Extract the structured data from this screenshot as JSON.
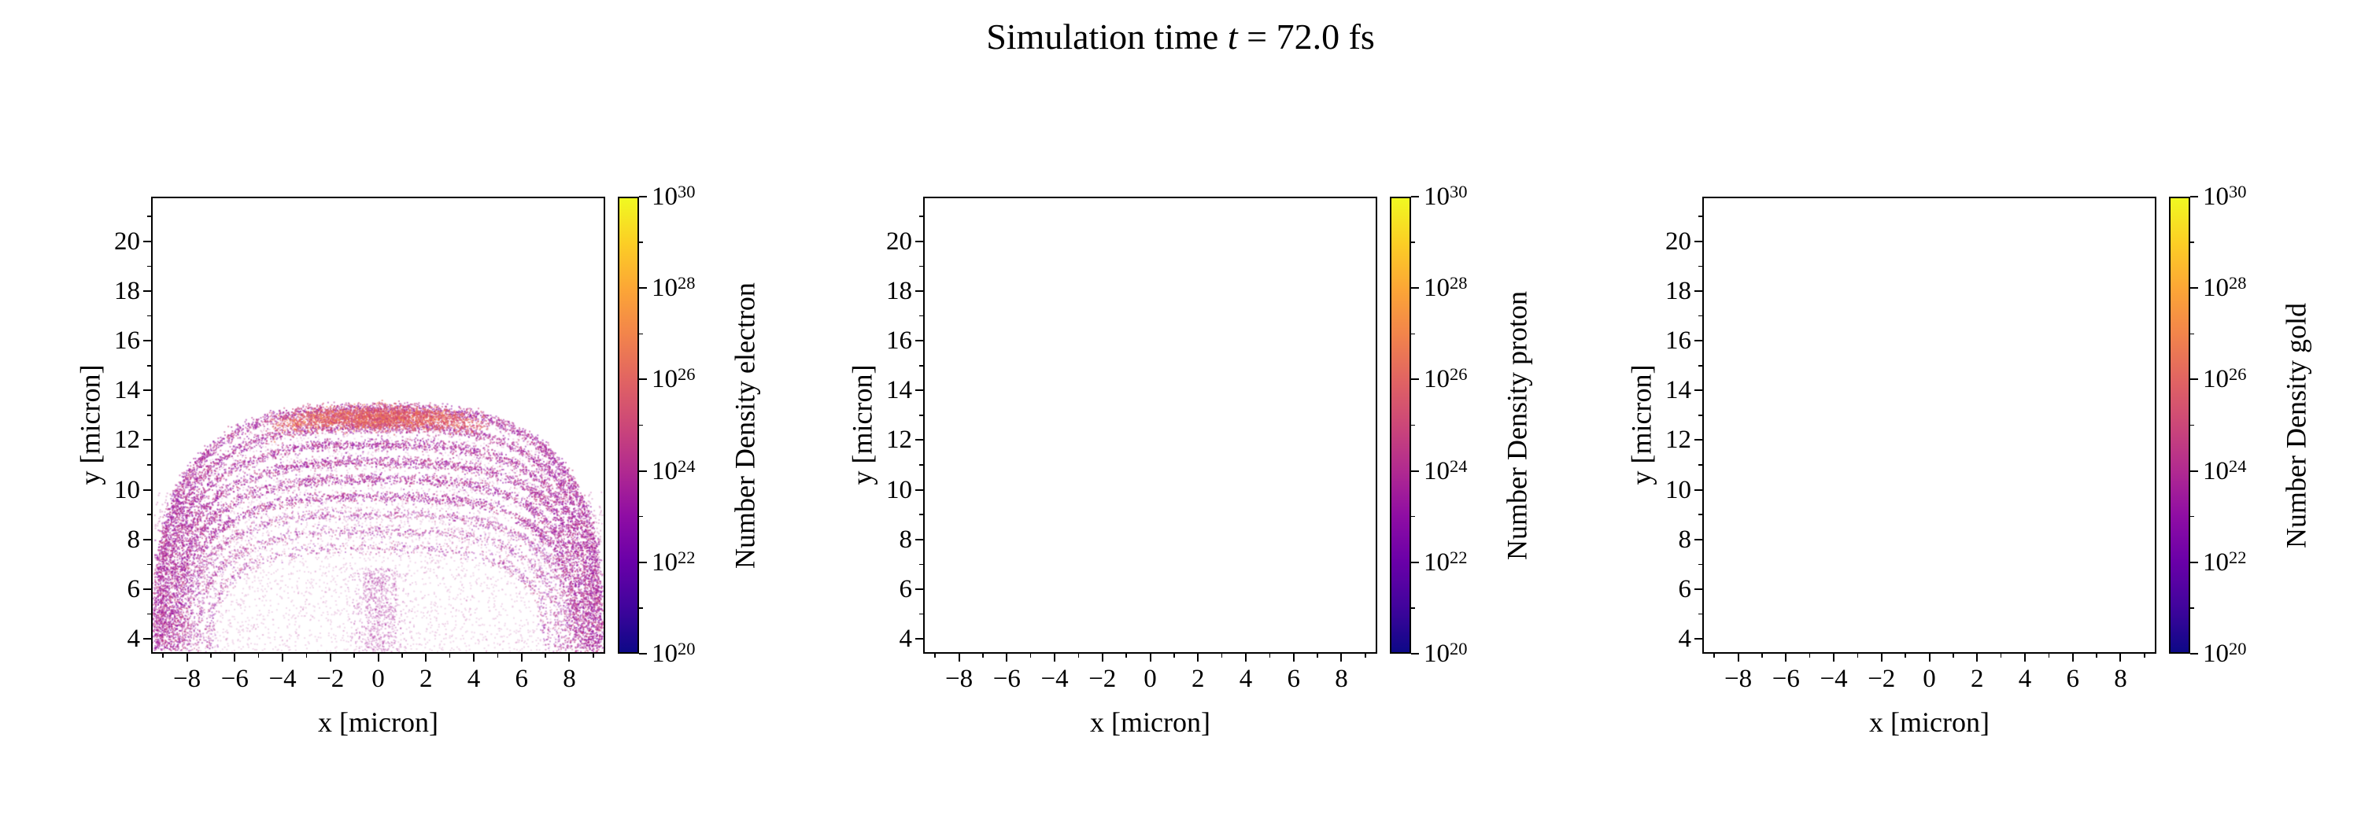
{
  "figure": {
    "title": {
      "full": "Simulation time t = 72.0 fs",
      "prefix": "Simulation time ",
      "variable": "t",
      "suffix": " = 72.0 fs"
    },
    "background_color": "#ffffff",
    "text_color": "#000000"
  },
  "colormap": {
    "name": "plasma",
    "stops": [
      "#0d0887",
      "#41049d",
      "#6a00a8",
      "#8f0da4",
      "#b12a90",
      "#cc4778",
      "#e16462",
      "#f2844b",
      "#fca636",
      "#fcce25",
      "#f0f921"
    ]
  },
  "chart_data": [
    {
      "type": "scatter",
      "species": "electron",
      "title": "",
      "xlabel": "x [micron]",
      "ylabel": "y [micron]",
      "xlim": [
        -9.5,
        9.5
      ],
      "ylim": [
        3.4,
        21.8
      ],
      "xticks": [
        -8,
        -6,
        -4,
        -2,
        0,
        2,
        4,
        6,
        8
      ],
      "yticks": [
        4,
        6,
        8,
        10,
        12,
        14,
        16,
        18,
        20
      ],
      "minor_tick_step": 1,
      "grid": false,
      "colorbar": {
        "label": "Number Density electron",
        "scale": "log",
        "tick_exponents": [
          20,
          22,
          24,
          26,
          28,
          30
        ],
        "minor_tick_exponents": [
          21,
          23,
          25,
          27,
          29
        ],
        "range": [
          "1e20",
          "1e30"
        ],
        "colormap": "plasma"
      },
      "content": {
        "empty": false,
        "description": "Dome-shaped expanding plasma shell: concentric magenta arcs between y ~ 8 and y ~ 13.3 micron spanning x ~ -9.4 to 9.4, a denser warm-colored crest band near y ~ 13, diffuse particle fill below the arcs down to y ~ 3.4, and a faint central streak near x = 0. Region above y ~ 13.5 is empty.",
        "dome": {
          "center_x": 0.0,
          "base_y": 3.5,
          "superellipse_exponent": 3.0,
          "jitter": 0.12,
          "seed": 42,
          "shells": [
            {
              "a": 9.35,
              "b": 9.75,
              "points": 2600
            },
            {
              "a": 9.2,
              "b": 9.0,
              "points": 2100
            },
            {
              "a": 9.0,
              "b": 8.3,
              "points": 2000
            },
            {
              "a": 8.8,
              "b": 7.6,
              "points": 1900
            },
            {
              "a": 8.55,
              "b": 6.9,
              "points": 1700
            },
            {
              "a": 8.3,
              "b": 6.2,
              "points": 1500
            },
            {
              "a": 8.0,
              "b": 5.5,
              "points": 1200
            },
            {
              "a": 7.6,
              "b": 4.8,
              "points": 900
            },
            {
              "a": 7.1,
              "b": 4.1,
              "points": 650
            }
          ],
          "shell_colors": [
            "#9c179e",
            "#b12a90",
            "#8f0da4",
            "#c33d80"
          ],
          "crest": {
            "x_half": 4.8,
            "points": 2800,
            "colors": [
              "#cc4778",
              "#e16462",
              "#d6456c",
              "#f2844b"
            ]
          },
          "fill": {
            "points": 4500,
            "color": "#b12a90",
            "alpha": 0.18
          },
          "streak": {
            "points": 650,
            "sigma_x": 0.5,
            "y_max": 6.8,
            "color": "#a62098",
            "alpha": 0.3
          },
          "edge_scatter": {
            "points": 260,
            "color": "#b12a90",
            "alpha": 0.3
          }
        }
      }
    },
    {
      "type": "scatter",
      "species": "proton",
      "title": "",
      "xlabel": "x [micron]",
      "ylabel": "y [micron]",
      "xlim": [
        -9.5,
        9.5
      ],
      "ylim": [
        3.4,
        21.8
      ],
      "xticks": [
        -8,
        -6,
        -4,
        -2,
        0,
        2,
        4,
        6,
        8
      ],
      "yticks": [
        4,
        6,
        8,
        10,
        12,
        14,
        16,
        18,
        20
      ],
      "minor_tick_step": 1,
      "grid": false,
      "colorbar": {
        "label": "Number Density proton",
        "scale": "log",
        "tick_exponents": [
          20,
          22,
          24,
          26,
          28,
          30
        ],
        "minor_tick_exponents": [
          21,
          23,
          25,
          27,
          29
        ],
        "range": [
          "1e20",
          "1e30"
        ],
        "colormap": "plasma"
      },
      "content": {
        "empty": true,
        "description": "No particles plotted; axes and colorbar only."
      }
    },
    {
      "type": "scatter",
      "species": "gold",
      "title": "",
      "xlabel": "x [micron]",
      "ylabel": "y [micron]",
      "xlim": [
        -9.5,
        9.5
      ],
      "ylim": [
        3.4,
        21.8
      ],
      "xticks": [
        -8,
        -6,
        -4,
        -2,
        0,
        2,
        4,
        6,
        8
      ],
      "yticks": [
        4,
        6,
        8,
        10,
        12,
        14,
        16,
        18,
        20
      ],
      "minor_tick_step": 1,
      "grid": false,
      "colorbar": {
        "label": "Number Density gold",
        "scale": "log",
        "tick_exponents": [
          20,
          22,
          24,
          26,
          28,
          30
        ],
        "minor_tick_exponents": [
          21,
          23,
          25,
          27,
          29
        ],
        "range": [
          "1e20",
          "1e30"
        ],
        "colormap": "plasma"
      },
      "content": {
        "empty": true,
        "description": "No particles plotted; axes and colorbar only."
      }
    }
  ]
}
